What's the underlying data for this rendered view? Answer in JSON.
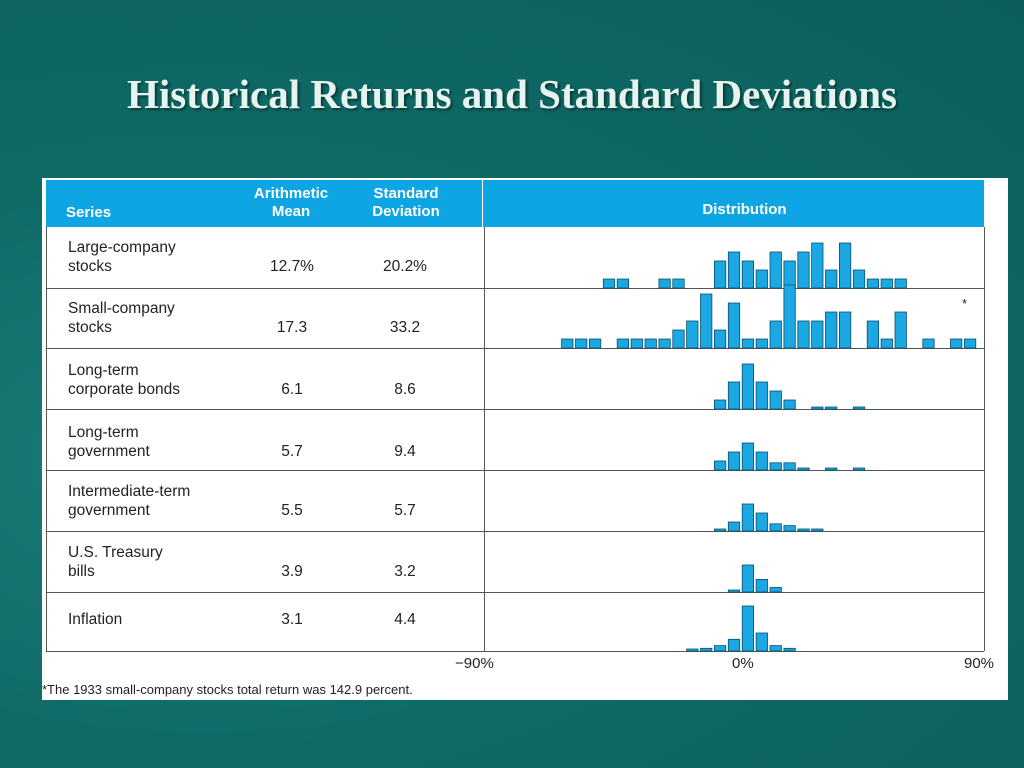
{
  "title": "Historical Returns and Standard Deviations",
  "table": {
    "headers": {
      "series": "Series",
      "mean_line1": "Arithmetic",
      "mean_line2": "Mean",
      "sd_line1": "Standard",
      "sd_line2": "Deviation",
      "distribution": "Distribution"
    },
    "rows": [
      {
        "line1": "Large-company",
        "line2": "stocks",
        "mean": "12.7%",
        "sd": "20.2%"
      },
      {
        "line1": "Small-company",
        "line2": "stocks",
        "mean": "17.3",
        "sd": "33.2"
      },
      {
        "line1": "Long-term",
        "line2": "corporate bonds",
        "mean": "6.1",
        "sd": "8.6"
      },
      {
        "line1": "Long-term",
        "line2": "government",
        "mean": "5.7",
        "sd": "9.4"
      },
      {
        "line1": "Intermediate-term",
        "line2": "government",
        "mean": "5.5",
        "sd": "5.7"
      },
      {
        "line1": "U.S. Treasury",
        "line2": "bills",
        "mean": "3.9",
        "sd": "3.2"
      },
      {
        "line1": "Inflation",
        "line2": "",
        "mean": "3.1",
        "sd": "4.4"
      }
    ],
    "axis_ticks": [
      "−90%",
      "0%",
      "90%"
    ],
    "asterisk": "*",
    "footnote": "*The 1933 small-company stocks total return was 142.9 percent."
  },
  "chart_data": {
    "type": "bar",
    "x_range": [
      -90,
      90
    ],
    "bin_width_pct": 5,
    "y_unit": "frequency (years)",
    "series": [
      {
        "name": "Large-company stocks",
        "bins": [
          [
            -45,
            1
          ],
          [
            -40,
            1
          ],
          [
            -25,
            1
          ],
          [
            -20,
            1
          ],
          [
            -5,
            3
          ],
          [
            0,
            4
          ],
          [
            5,
            3
          ],
          [
            10,
            2
          ],
          [
            15,
            4
          ],
          [
            20,
            3
          ],
          [
            25,
            4
          ],
          [
            30,
            5
          ],
          [
            35,
            2
          ],
          [
            40,
            5
          ],
          [
            45,
            2
          ],
          [
            50,
            1
          ],
          [
            55,
            1
          ],
          [
            60,
            1
          ]
        ]
      },
      {
        "name": "Small-company stocks",
        "bins": [
          [
            -60,
            1
          ],
          [
            -55,
            1
          ],
          [
            -50,
            1
          ],
          [
            -40,
            1
          ],
          [
            -35,
            1
          ],
          [
            -30,
            1
          ],
          [
            -25,
            1
          ],
          [
            -20,
            2
          ],
          [
            -15,
            3
          ],
          [
            -10,
            6
          ],
          [
            -5,
            2
          ],
          [
            0,
            5
          ],
          [
            5,
            1
          ],
          [
            10,
            1
          ],
          [
            15,
            3
          ],
          [
            20,
            7
          ],
          [
            25,
            3
          ],
          [
            30,
            3
          ],
          [
            35,
            4
          ],
          [
            40,
            4
          ],
          [
            50,
            3
          ],
          [
            55,
            1
          ],
          [
            60,
            4
          ],
          [
            70,
            1
          ],
          [
            80,
            1
          ],
          [
            85,
            1
          ]
        ]
      },
      {
        "name": "Long-term corporate bonds",
        "bins": [
          [
            -5,
            1
          ],
          [
            0,
            3
          ],
          [
            5,
            5
          ],
          [
            10,
            3
          ],
          [
            15,
            2
          ],
          [
            20,
            1
          ],
          [
            30,
            0.2
          ],
          [
            35,
            0.2
          ],
          [
            45,
            0.2
          ]
        ]
      },
      {
        "name": "Long-term government",
        "bins": [
          [
            -5,
            1
          ],
          [
            0,
            2
          ],
          [
            5,
            3
          ],
          [
            10,
            2
          ],
          [
            15,
            0.8
          ],
          [
            20,
            0.8
          ],
          [
            25,
            0.2
          ],
          [
            35,
            0.2
          ],
          [
            45,
            0.2
          ]
        ]
      },
      {
        "name": "Intermediate-term government",
        "bins": [
          [
            -5,
            0.2
          ],
          [
            0,
            1
          ],
          [
            5,
            3
          ],
          [
            10,
            2
          ],
          [
            15,
            0.8
          ],
          [
            20,
            0.6
          ],
          [
            25,
            0.2
          ],
          [
            30,
            0.2
          ]
        ]
      },
      {
        "name": "U.S. Treasury bills",
        "bins": [
          [
            0,
            0.2
          ],
          [
            5,
            3
          ],
          [
            10,
            1.4
          ],
          [
            15,
            0.5
          ]
        ]
      },
      {
        "name": "Inflation",
        "bins": [
          [
            -15,
            0.1
          ],
          [
            -10,
            0.3
          ],
          [
            -5,
            0.6
          ],
          [
            0,
            1.3
          ],
          [
            5,
            5
          ],
          [
            10,
            2
          ],
          [
            15,
            0.6
          ],
          [
            20,
            0.3
          ]
        ]
      }
    ]
  }
}
